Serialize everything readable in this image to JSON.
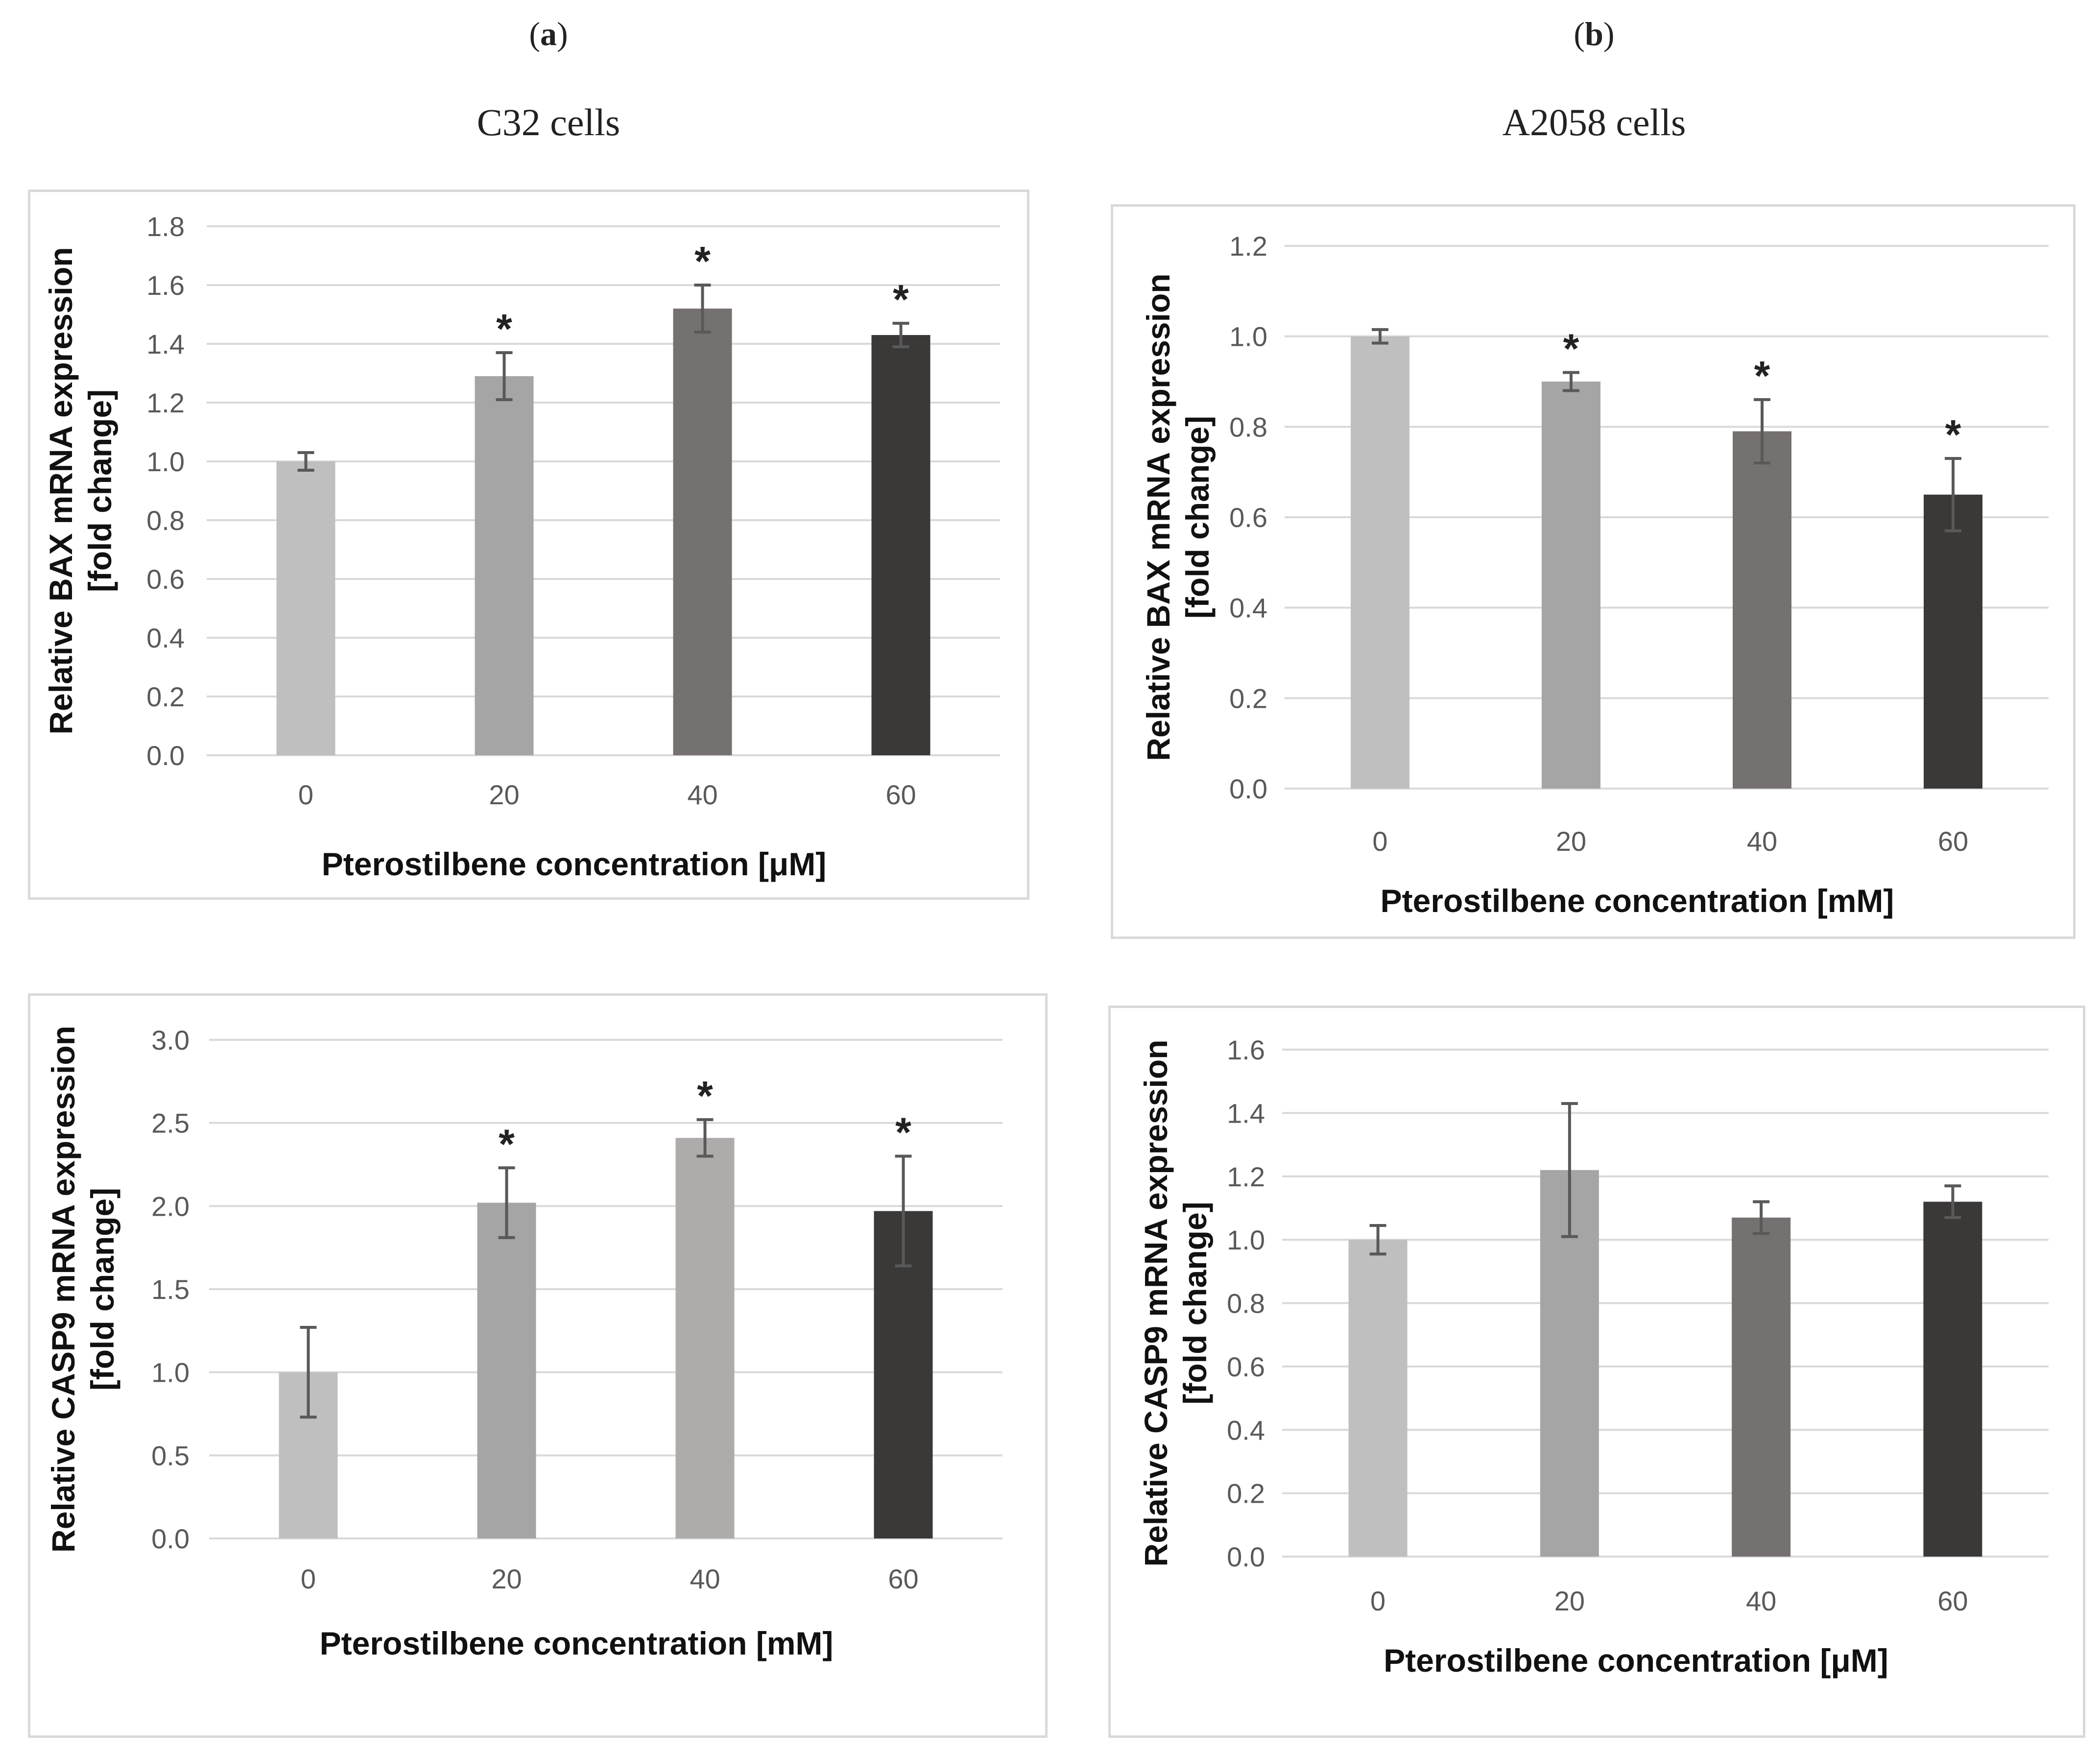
{
  "panels": {
    "a": {
      "letter": "a",
      "cell_title": "C32 cells"
    },
    "b": {
      "letter": "b",
      "cell_title": "A2058 cells"
    }
  },
  "chart_data": [
    {
      "type": "bar",
      "panel": "a",
      "categories": [
        "0",
        "20",
        "40",
        "60"
      ],
      "values": [
        1.0,
        1.29,
        1.52,
        1.43
      ],
      "errors": [
        0.03,
        0.08,
        0.08,
        0.04
      ],
      "significance": [
        "",
        "*",
        "*",
        "*"
      ],
      "colors": [
        "#bfbfbf",
        "#a5a5a5",
        "#767171",
        "#3b3838"
      ],
      "ylabel_line1": "Relative BAX mRNA expression",
      "ylabel_line2": "[fold change]",
      "xlabel": "Pterostilbene concentration [μM]",
      "ylim": [
        0,
        1.8
      ],
      "yticks": [
        "0.0",
        "0.2",
        "0.4",
        "0.6",
        "0.8",
        "1.0",
        "1.2",
        "1.4",
        "1.6",
        "1.8"
      ],
      "grid": true
    },
    {
      "type": "bar",
      "panel": "b",
      "categories": [
        "0",
        "20",
        "40",
        "60"
      ],
      "values": [
        1.0,
        0.9,
        0.79,
        0.65
      ],
      "errors": [
        0.015,
        0.02,
        0.07,
        0.08
      ],
      "significance": [
        "",
        "*",
        "*",
        "*"
      ],
      "colors": [
        "#bfbfbf",
        "#a5a5a5",
        "#767171",
        "#3b3838"
      ],
      "ylabel_line1": "Relative BAX mRNA expression",
      "ylabel_line2": "[fold change]",
      "xlabel": "Pterostilbene concentration [mM]",
      "ylim": [
        0,
        1.2
      ],
      "yticks": [
        "0.0",
        "0.2",
        "0.4",
        "0.6",
        "0.8",
        "1.0",
        "1.2"
      ],
      "grid": true
    },
    {
      "type": "bar",
      "panel": "a",
      "categories": [
        "0",
        "20",
        "40",
        "60"
      ],
      "values": [
        1.0,
        2.02,
        2.41,
        1.97
      ],
      "errors": [
        0.27,
        0.21,
        0.11,
        0.33
      ],
      "significance": [
        "",
        "*",
        "*",
        "*"
      ],
      "colors": [
        "#bfbfbf",
        "#a5a5a5",
        "#afabab",
        "#3b3838"
      ],
      "ylabel_line1": "Relative CASP9 mRNA expression",
      "ylabel_line2": "[fold change]",
      "xlabel": "Pterostilbene concentration [mM]",
      "ylim": [
        0,
        3.0
      ],
      "yticks": [
        "0.0",
        "0.5",
        "1.0",
        "1.5",
        "2.0",
        "2.5",
        "3.0"
      ],
      "grid": true
    },
    {
      "type": "bar",
      "panel": "b",
      "categories": [
        "0",
        "20",
        "40",
        "60"
      ],
      "values": [
        1.0,
        1.22,
        1.07,
        1.12
      ],
      "errors": [
        0.045,
        0.21,
        0.05,
        0.05
      ],
      "significance": [
        "",
        "",
        "",
        ""
      ],
      "colors": [
        "#bfbfbf",
        "#a5a5a5",
        "#767171",
        "#3b3838"
      ],
      "ylabel_line1": "Relative CASP9 mRNA expression",
      "ylabel_line2": "[fold change]",
      "xlabel": "Pterostilbene concentration [μM]",
      "ylim": [
        0,
        1.6
      ],
      "yticks": [
        "0.0",
        "0.2",
        "0.4",
        "0.6",
        "0.8",
        "1.0",
        "1.2",
        "1.4",
        "1.6"
      ],
      "grid": true
    }
  ]
}
